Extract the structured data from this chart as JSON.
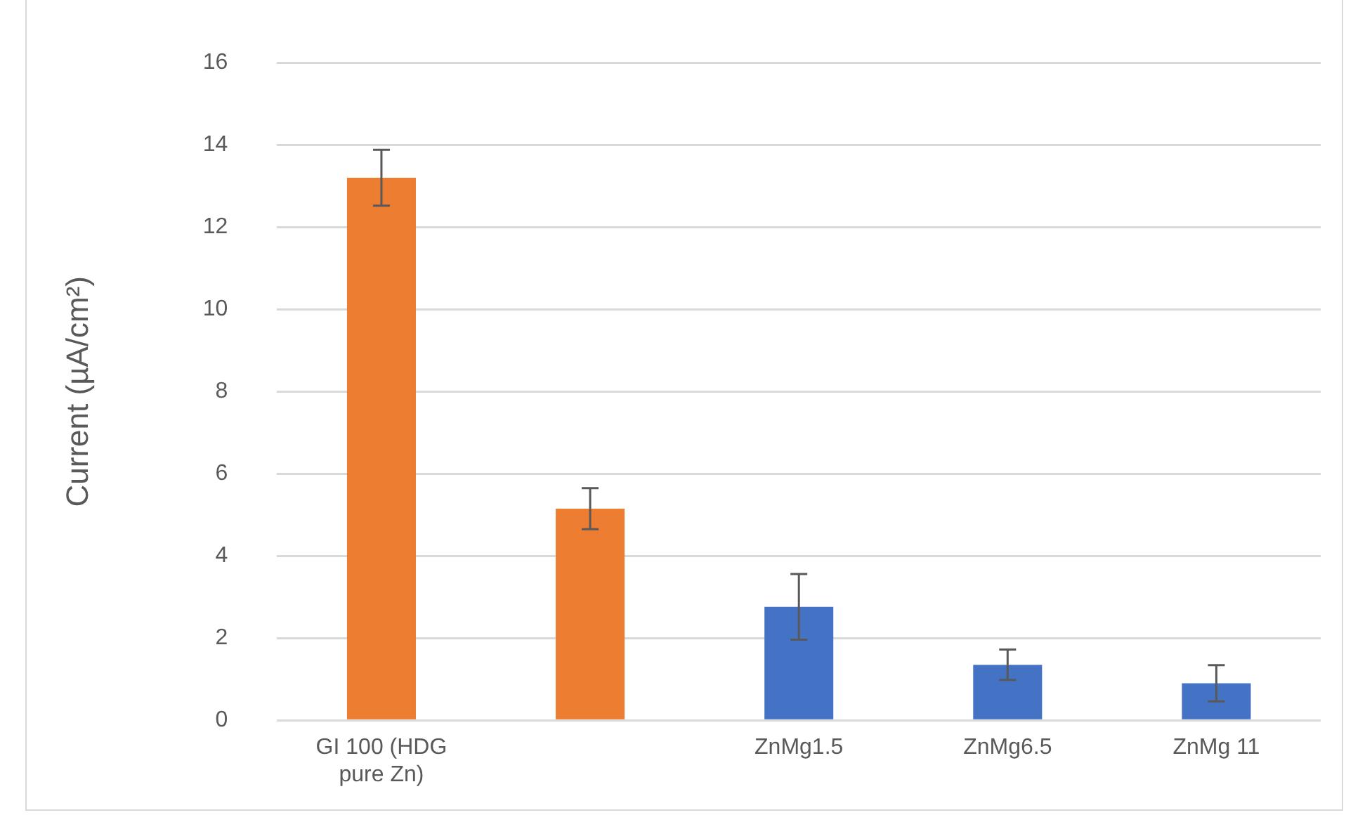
{
  "chart_data": {
    "type": "bar",
    "categories": [
      "GI 100 (HDG pure Zn)",
      null,
      "ZnMg1.5",
      "ZnMg6.5",
      "ZnMg 11"
    ],
    "values": [
      13.2,
      5.15,
      2.76,
      1.35,
      0.9
    ],
    "colors": [
      "#ed7d31",
      "#ed7d31",
      "#4472c4",
      "#4472c4",
      "#4472c4"
    ],
    "errors": [
      0.68,
      0.5,
      0.8,
      0.37,
      0.44
    ],
    "ylabel": "Current (µA/cm²)",
    "ylim": [
      0,
      16
    ],
    "yticks": [
      0,
      2,
      4,
      6,
      8,
      10,
      12,
      14,
      16
    ],
    "grid": "y",
    "legend": false
  }
}
